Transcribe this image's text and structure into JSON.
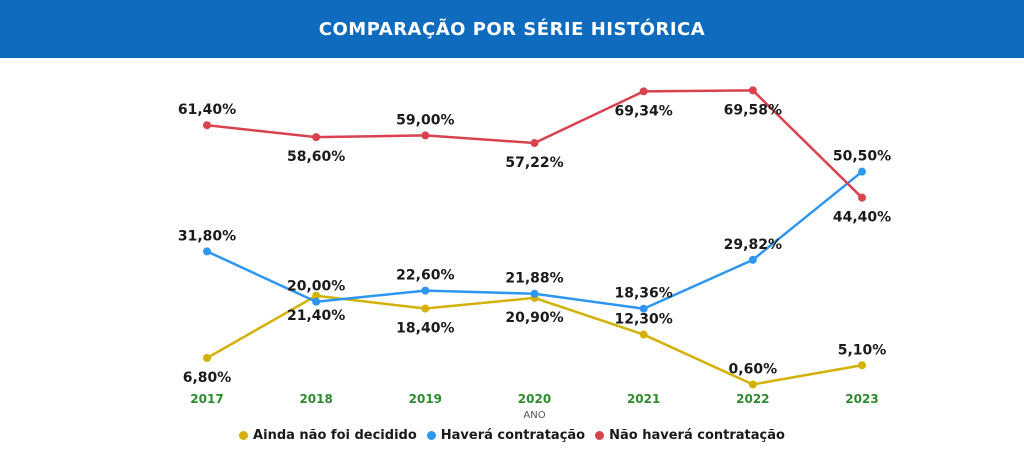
{
  "header": {
    "title": "COMPARAÇÃO POR SÉRIE HISTÓRICA"
  },
  "chart_data": {
    "type": "line",
    "title": "COMPARAÇÃO POR SÉRIE HISTÓRICA",
    "xlabel": "ANO",
    "ylabel": "",
    "x": [
      "2017",
      "2018",
      "2019",
      "2020",
      "2021",
      "2022",
      "2023"
    ],
    "ylim": [
      0,
      72
    ],
    "legend_position": "bottom",
    "grid": false,
    "tick_color": "#2e8b2e",
    "series": [
      {
        "name": "Ainda não foi decidido",
        "color": "#d4b106",
        "values": [
          6.8,
          21.4,
          18.4,
          20.9,
          12.3,
          0.6,
          5.1
        ],
        "labels": [
          "6,80%",
          "21,40%",
          "18,40%",
          "20,90%",
          "12,30%",
          "0,60%",
          "5,10%"
        ]
      },
      {
        "name": "Haverá contratação",
        "color": "#2e96f0",
        "values": [
          31.8,
          20.0,
          22.6,
          21.88,
          18.36,
          29.82,
          50.5
        ],
        "labels": [
          "31,80%",
          "20,00%",
          "22,60%",
          "21,88%",
          "18,36%",
          "29,82%",
          "50,50%"
        ]
      },
      {
        "name": "Não haverá contratação",
        "color": "#d9434f",
        "values": [
          61.4,
          58.6,
          59.0,
          57.22,
          69.34,
          69.58,
          44.4
        ],
        "labels": [
          "61,40%",
          "58,60%",
          "59,00%",
          "57,22%",
          "69,34%",
          "69,58%",
          "44,40%"
        ]
      }
    ]
  }
}
